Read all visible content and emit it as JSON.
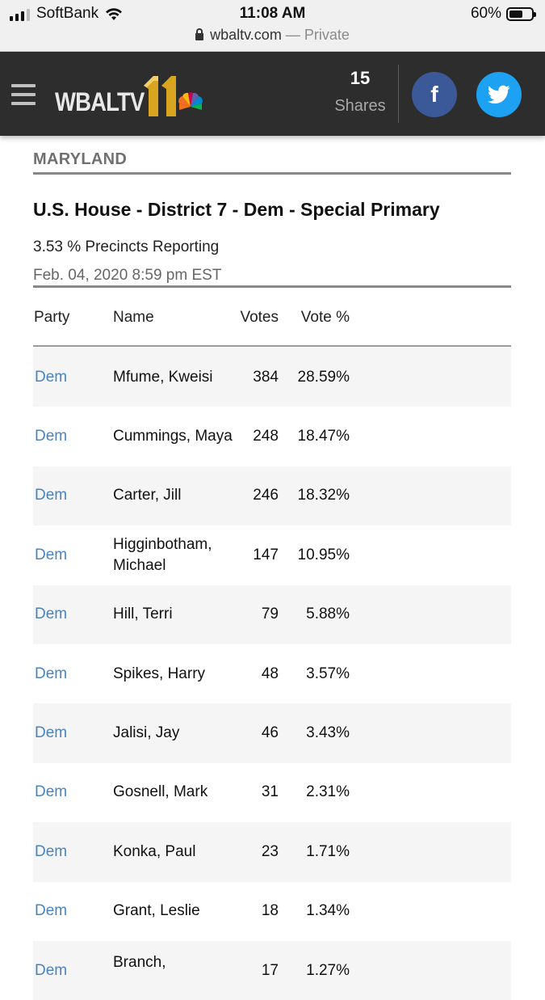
{
  "status_bar": {
    "carrier": "SoftBank",
    "time": "11:08 AM",
    "battery": "60%",
    "battery_level": 0.6,
    "url": "wbaltv.com",
    "private_label": "— Private"
  },
  "header": {
    "logo_text": "WBALTV",
    "shares_count": "15",
    "shares_label": "Shares",
    "facebook_glyph": "f",
    "colors": {
      "bar": "#2d2d2d",
      "facebook": "#3b5998",
      "twitter": "#1da1f2",
      "logo_gold": "#d9a521"
    }
  },
  "content": {
    "state": "MARYLAND",
    "race_title": "U.S. House - District 7 - Dem - Special Primary",
    "precincts": "3.53 % Precincts Reporting",
    "timestamp": "Feb. 04, 2020 8:59 pm EST"
  },
  "table": {
    "columns": {
      "party": "Party",
      "name": "Name",
      "votes": "Votes",
      "pct": "Vote %"
    },
    "rows": [
      {
        "party": "Dem",
        "name": "Mfume, Kweisi",
        "votes": "384",
        "pct": "28.59%"
      },
      {
        "party": "Dem",
        "name": "Cummings, Maya",
        "votes": "248",
        "pct": "18.47%"
      },
      {
        "party": "Dem",
        "name": "Carter, Jill",
        "votes": "246",
        "pct": "18.32%"
      },
      {
        "party": "Dem",
        "name": "Higginbotham, Michael",
        "votes": "147",
        "pct": "10.95%"
      },
      {
        "party": "Dem",
        "name": "Hill, Terri",
        "votes": "79",
        "pct": "5.88%"
      },
      {
        "party": "Dem",
        "name": "Spikes, Harry",
        "votes": "48",
        "pct": "3.57%"
      },
      {
        "party": "Dem",
        "name": "Jalisi, Jay",
        "votes": "46",
        "pct": "3.43%"
      },
      {
        "party": "Dem",
        "name": "Gosnell, Mark",
        "votes": "31",
        "pct": "2.31%"
      },
      {
        "party": "Dem",
        "name": "Konka, Paul",
        "votes": "23",
        "pct": "1.71%"
      },
      {
        "party": "Dem",
        "name": "Grant, Leslie",
        "votes": "18",
        "pct": "1.34%"
      },
      {
        "party": "Dem",
        "name": "Branch,",
        "votes": "17",
        "pct": "1.27%"
      }
    ]
  }
}
